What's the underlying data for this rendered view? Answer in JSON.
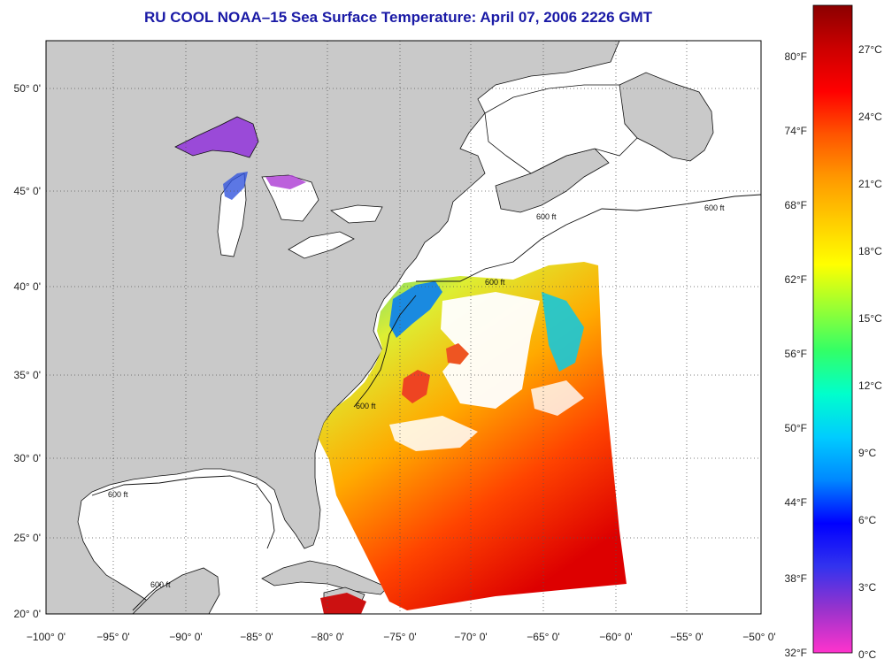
{
  "title": "RU COOL  NOAA–15  Sea Surface Temperature:  April 07, 2006 2226 GMT",
  "map": {
    "lon_ticks": [
      "−100° 0'",
      "−95° 0'",
      "−90° 0'",
      "−85° 0'",
      "−80° 0'",
      "−75° 0'",
      "−70° 0'",
      "−65° 0'",
      "−60° 0'",
      "−55° 0'",
      "−50° 0'"
    ],
    "lat_ticks": [
      "50° 0'",
      "45° 0'",
      "40° 0'",
      "35° 0'",
      "30° 0'",
      "25° 0'",
      "20° 0'"
    ],
    "contour_label": "600 ft",
    "colors": {
      "land": "#c9c9c9",
      "ocean_nodata": "#ffffff",
      "grid": "#555555"
    }
  },
  "colorbar": {
    "fahrenheit_labels": [
      "80°F",
      "74°F",
      "68°F",
      "62°F",
      "56°F",
      "50°F",
      "44°F",
      "38°F",
      "32°F"
    ],
    "celsius_labels": [
      "27°C",
      "24°C",
      "21°C",
      "18°C",
      "15°C",
      "12°C",
      "9°C",
      "6°C",
      "3°C",
      "0°C"
    ],
    "gradient_colors": [
      "#ff33cc",
      "#9933cc",
      "#3333ee",
      "#0000ff",
      "#0088ff",
      "#00ccff",
      "#00ffcc",
      "#33ff66",
      "#99ff33",
      "#ffff00",
      "#ffcc00",
      "#ff9900",
      "#ff5500",
      "#ff0000",
      "#cc0000",
      "#8b0000"
    ]
  }
}
